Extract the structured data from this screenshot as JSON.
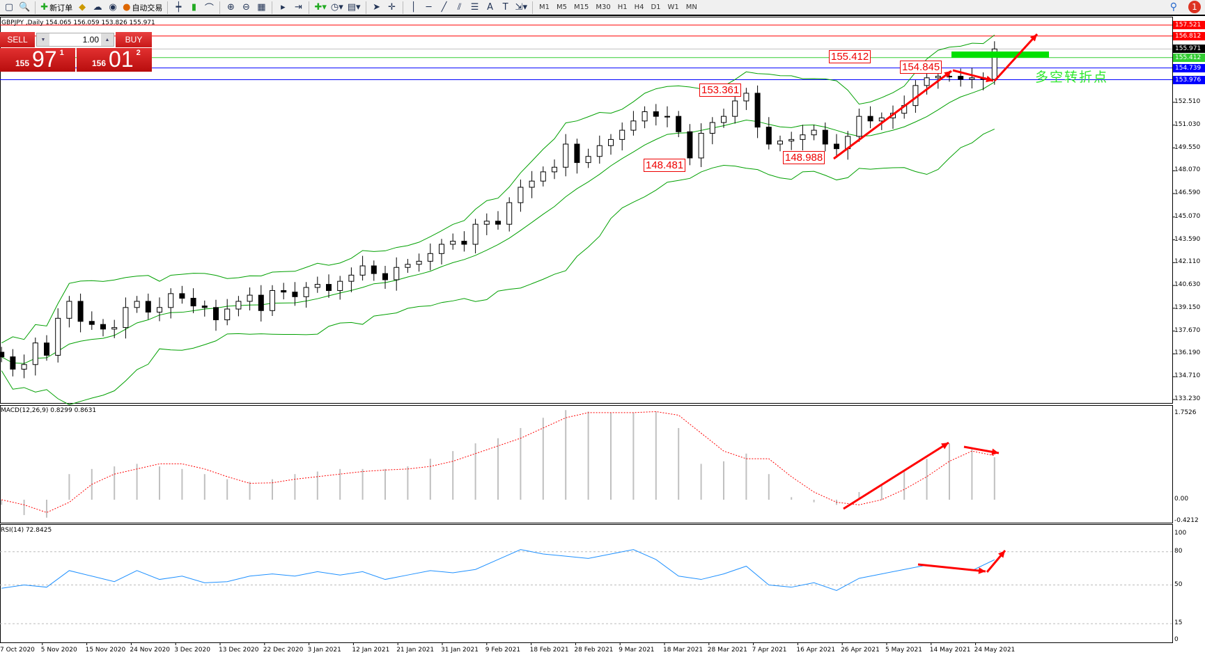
{
  "toolbar": {
    "new_order": "新订单",
    "auto_trading": "自动交易",
    "timeframes": [
      "M1",
      "M5",
      "M15",
      "M30",
      "H1",
      "H4",
      "D1",
      "W1",
      "MN"
    ],
    "notification_count": "1"
  },
  "chart": {
    "title": "GBPJPY ,Daily  154.065 156.059 153.826 155.971"
  },
  "trade_panel": {
    "sell": "SELL",
    "buy": "BUY",
    "lot": "1.00",
    "sell_price": {
      "small": "155",
      "big": "97",
      "sup": "1"
    },
    "buy_price": {
      "small": "156",
      "big": "01",
      "sup": "2"
    }
  },
  "hlines": [
    {
      "value": "157.521",
      "color": "#ff0000"
    },
    {
      "value": "156.812",
      "color": "#ff0000"
    },
    {
      "value": "155.971",
      "color": "#000000",
      "line": "#c0c0c0"
    },
    {
      "value": "155.412",
      "color": "#32cd32"
    },
    {
      "value": "154.739",
      "color": "#0000ff"
    },
    {
      "value": "153.976",
      "color": "#0000ff"
    }
  ],
  "annotations": [
    "155.412",
    "154.845",
    "153.361",
    "148.481",
    "148.988"
  ],
  "note": "多空转折点",
  "chart_data": [
    {
      "type": "candlestick",
      "name": "GBPJPY Daily",
      "yticks": [
        "152.510",
        "151.030",
        "149.550",
        "148.070",
        "146.590",
        "145.070",
        "143.590",
        "142.110",
        "140.630",
        "139.150",
        "137.670",
        "136.190",
        "134.710",
        "133.230"
      ],
      "ylim": [
        133.23,
        157.8
      ],
      "xticks": [
        "7 Oct 2020",
        "5 Nov 2020",
        "15 Nov 2020",
        "24 Nov 2020",
        "3 Dec 2020",
        "13 Dec 2020",
        "22 Dec 2020",
        "3 Jan 2021",
        "12 Jan 2021",
        "21 Jan 2021",
        "31 Jan 2021",
        "9 Feb 2021",
        "18 Feb 2021",
        "28 Feb 2021",
        "9 Mar 2021",
        "18 Mar 2021",
        "28 Mar 2021",
        "7 Apr 2021",
        "16 Apr 2021",
        "26 Apr 2021",
        "5 May 2021",
        "14 May 2021",
        "24 May 2021"
      ],
      "close": [
        136.0,
        135.2,
        135.5,
        136.9,
        136.1,
        138.5,
        139.6,
        138.3,
        138.1,
        137.8,
        137.9,
        139.2,
        139.6,
        138.9,
        139.2,
        140.1,
        139.8,
        139.3,
        139.2,
        138.4,
        139.1,
        139.6,
        140.0,
        139.0,
        140.3,
        140.2,
        139.9,
        140.5,
        140.7,
        140.3,
        140.9,
        141.3,
        141.9,
        141.4,
        141.0,
        141.8,
        142.0,
        142.2,
        142.7,
        143.3,
        143.5,
        143.3,
        144.6,
        144.8,
        144.6,
        146.0,
        147.0,
        147.4,
        148.0,
        148.3,
        149.8,
        148.6,
        149.0,
        149.7,
        150.1,
        150.7,
        151.3,
        151.9,
        151.6,
        151.6,
        150.6,
        148.9,
        150.5,
        151.2,
        151.6,
        152.6,
        153.1,
        150.9,
        149.8,
        150.0,
        150.1,
        150.4,
        150.7,
        149.8,
        149.5,
        150.3,
        151.6,
        151.3,
        151.5,
        151.8,
        152.3,
        153.6,
        154.1,
        154.2,
        154.2,
        154.0,
        154.1,
        154.0,
        155.97
      ],
      "bollinger_color": "#00a000"
    },
    {
      "type": "bar+line",
      "label": "MACD(12,26,9) 0.8299 0.8631",
      "yticks": [
        "1.7526",
        "0.00",
        "-0.4212"
      ],
      "ylim": [
        -0.4212,
        1.7526
      ],
      "histogram": [
        -0.1,
        -0.3,
        -0.35,
        0.5,
        0.6,
        0.65,
        0.7,
        0.65,
        0.6,
        0.5,
        0.4,
        0.35,
        0.4,
        0.5,
        0.55,
        0.6,
        0.6,
        0.6,
        0.65,
        0.8,
        0.95,
        1.1,
        1.2,
        1.4,
        1.6,
        1.75,
        1.72,
        1.7,
        1.7,
        1.72,
        1.4,
        0.7,
        0.75,
        0.9,
        0.5,
        0.05,
        -0.05,
        -0.1,
        0.15,
        0.3,
        0.55,
        0.8,
        1.1,
        1.0,
        0.83
      ],
      "signal": [
        0.0,
        -0.1,
        -0.25,
        -0.05,
        0.3,
        0.5,
        0.6,
        0.7,
        0.7,
        0.6,
        0.45,
        0.32,
        0.33,
        0.4,
        0.45,
        0.5,
        0.55,
        0.58,
        0.6,
        0.65,
        0.75,
        0.9,
        1.05,
        1.2,
        1.4,
        1.6,
        1.7,
        1.7,
        1.7,
        1.72,
        1.65,
        1.3,
        0.95,
        0.8,
        0.8,
        0.45,
        0.15,
        -0.05,
        -0.1,
        0.0,
        0.2,
        0.45,
        0.75,
        0.95,
        0.86
      ],
      "histogram_color": "#c0c0c0",
      "signal_color": "#ff0000"
    },
    {
      "type": "line",
      "label": "RSI(14) 72.8425",
      "yticks": [
        "100",
        "80",
        "50",
        "15",
        "0"
      ],
      "ylim": [
        0,
        100
      ],
      "levels": [
        80,
        50,
        15
      ],
      "values": [
        47,
        50,
        48,
        63,
        58,
        53,
        63,
        55,
        58,
        52,
        53,
        58,
        60,
        58,
        62,
        59,
        62,
        55,
        59,
        63,
        61,
        64,
        73,
        82,
        78,
        76,
        74,
        78,
        82,
        73,
        58,
        55,
        60,
        67,
        50,
        48,
        52,
        45,
        56,
        60,
        64,
        68,
        66,
        63,
        72.8
      ],
      "color": "#1e90ff"
    }
  ]
}
